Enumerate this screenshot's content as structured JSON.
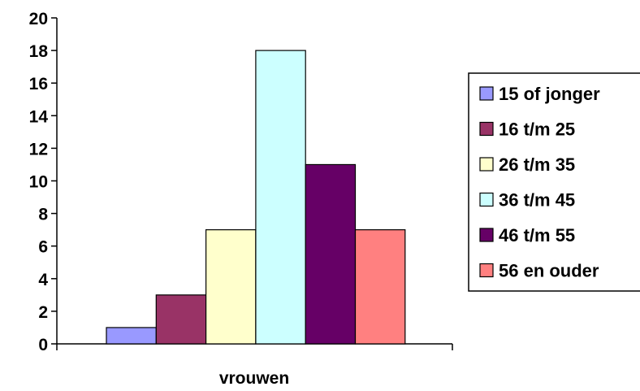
{
  "chart_data": {
    "type": "bar",
    "categories": [
      "vrouwen"
    ],
    "series": [
      {
        "name": "15 of jonger",
        "values": [
          1
        ],
        "color": "#9999FF"
      },
      {
        "name": "16 t/m 25",
        "values": [
          3
        ],
        "color": "#993366"
      },
      {
        "name": "26 t/m 35",
        "values": [
          7
        ],
        "color": "#FFFFCC"
      },
      {
        "name": "36 t/m 45",
        "values": [
          18
        ],
        "color": "#CCFFFF"
      },
      {
        "name": "46 t/m 55",
        "values": [
          11
        ],
        "color": "#660066"
      },
      {
        "name": "56 en ouder",
        "values": [
          7
        ],
        "color": "#FF8080"
      }
    ],
    "yticks": [
      "0",
      "2",
      "4",
      "6",
      "8",
      "10",
      "12",
      "14",
      "16",
      "18",
      "20"
    ],
    "ylim": [
      0,
      20
    ],
    "title": "",
    "xlabel": "",
    "ylabel": "",
    "grid": false,
    "legend_position": "right"
  }
}
